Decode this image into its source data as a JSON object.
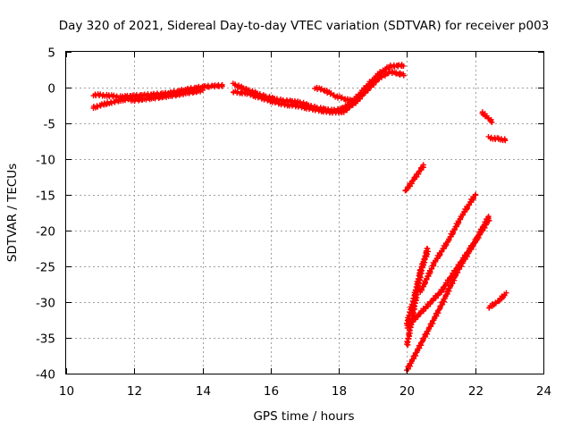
{
  "chart_data": {
    "type": "scatter",
    "title": "Day 320 of 2021, Sidereal Day-to-day VTEC variation (SDTVAR) for receiver p003",
    "xlabel": "GPS time / hours",
    "ylabel": "SDTVAR / TECUs",
    "xlim": [
      10,
      24
    ],
    "ylim": [
      -40,
      5
    ],
    "xticks": [
      10,
      12,
      14,
      16,
      18,
      20,
      22,
      24
    ],
    "yticks": [
      5,
      0,
      -5,
      -10,
      -15,
      -20,
      -25,
      -30,
      -35,
      -40
    ],
    "grid": true,
    "legend": "none",
    "marker": "plus",
    "color": "#ff0000",
    "series": [
      {
        "x": [
          10.8,
          11.2,
          11.6,
          11.9
        ],
        "y": [
          -1.0,
          -1.1,
          -1.3,
          -1.2
        ]
      },
      {
        "x": [
          10.8,
          11.2,
          11.6,
          11.9
        ],
        "y": [
          -2.8,
          -2.2,
          -1.8,
          -1.5
        ]
      },
      {
        "x": [
          11.9,
          12.5,
          13.0,
          13.5,
          14.0,
          14.3,
          14.6
        ],
        "y": [
          -1.2,
          -1.0,
          -0.8,
          -0.3,
          0.1,
          0.2,
          0.3
        ]
      },
      {
        "x": [
          11.9,
          12.5,
          13.0,
          13.5,
          14.0
        ],
        "y": [
          -1.8,
          -1.5,
          -1.2,
          -0.8,
          -0.4
        ]
      },
      {
        "x": [
          14.9,
          15.3,
          15.8,
          16.3,
          16.8,
          17.3,
          17.8,
          18.1
        ],
        "y": [
          0.5,
          -0.3,
          -1.2,
          -1.8,
          -2.0,
          -2.8,
          -3.2,
          -3.0
        ]
      },
      {
        "x": [
          14.9,
          15.3,
          15.8,
          16.3,
          16.8,
          17.3,
          17.8,
          18.1
        ],
        "y": [
          -0.6,
          -0.8,
          -1.6,
          -2.3,
          -2.6,
          -3.1,
          -3.5,
          -3.3
        ]
      },
      {
        "x": [
          17.3,
          17.6,
          17.9,
          18.2,
          18.5
        ],
        "y": [
          0.0,
          -0.4,
          -1.2,
          -1.6,
          -2.0
        ]
      },
      {
        "x": [
          18.1,
          18.5,
          18.9,
          19.2,
          19.5,
          19.9
        ],
        "y": [
          -3.0,
          -1.5,
          0.6,
          2.0,
          3.0,
          3.1
        ]
      },
      {
        "x": [
          18.1,
          18.5,
          18.9,
          19.2,
          19.5,
          19.9
        ],
        "y": [
          -3.5,
          -2.0,
          0.0,
          1.4,
          2.2,
          1.8
        ]
      },
      {
        "x": [
          19.95,
          20.5
        ],
        "y": [
          -14.5,
          -10.8
        ]
      },
      {
        "x": [
          20.0,
          20.2,
          20.4,
          20.6
        ],
        "y": [
          -36.0,
          -31.0,
          -26.0,
          -22.5
        ]
      },
      {
        "x": [
          20.0,
          20.2,
          20.4,
          20.6
        ],
        "y": [
          -33.0,
          -29.5,
          -25.5,
          -23.0
        ]
      },
      {
        "x": [
          20.4,
          20.8,
          21.2,
          21.6,
          22.0
        ],
        "y": [
          -28.5,
          -24.5,
          -21.5,
          -18.0,
          -15.0
        ]
      },
      {
        "x": [
          20.0,
          20.6,
          21.0,
          21.5,
          22.0,
          22.4
        ],
        "y": [
          -33.5,
          -30.5,
          -28.5,
          -25.0,
          -21.5,
          -18.0
        ]
      },
      {
        "x": [
          20.0,
          20.5,
          21.0,
          21.5,
          22.0,
          22.4
        ],
        "y": [
          -39.5,
          -35.0,
          -30.5,
          -25.5,
          -21.5,
          -18.5
        ]
      },
      {
        "x": [
          22.2,
          22.5
        ],
        "y": [
          -3.5,
          -4.8
        ]
      },
      {
        "x": [
          22.4,
          22.7,
          22.9
        ],
        "y": [
          -7.0,
          -7.2,
          -7.3
        ]
      },
      {
        "x": [
          22.4,
          22.7,
          22.9
        ],
        "y": [
          -30.8,
          -29.8,
          -28.8
        ]
      }
    ]
  }
}
